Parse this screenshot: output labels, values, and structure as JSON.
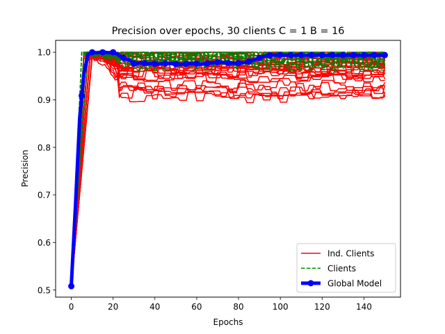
{
  "chart_data": {
    "type": "line",
    "title": "Precision over epochs, 30 clients C = 1 B = 16",
    "xlabel": "Epochs",
    "ylabel": "Precision",
    "xlim": [
      -7.5,
      157.5
    ],
    "ylim": [
      0.485,
      1.025
    ],
    "xticks": [
      0,
      20,
      40,
      60,
      80,
      100,
      120,
      140
    ],
    "yticks": [
      0.5,
      0.6,
      0.7,
      0.8,
      0.9,
      1.0
    ],
    "ytick_labels": [
      "0.5",
      "0.6",
      "0.7",
      "0.8",
      "0.9",
      "1.0"
    ],
    "grid": false,
    "legend_position": "lower-right",
    "legend": [
      {
        "label": "Ind. Clients",
        "color": "#ff0000",
        "style": "solid"
      },
      {
        "label": "Clients",
        "color": "#008000",
        "style": "dashed"
      },
      {
        "label": "Global Model",
        "color": "#0000ff",
        "style": "thick-marker"
      }
    ],
    "global_model": {
      "name": "Global Model",
      "color": "#0000ff",
      "x": [
        0,
        2,
        4,
        6,
        8,
        10,
        12,
        14,
        16,
        18,
        20,
        22,
        24,
        26,
        28,
        30,
        32,
        34,
        36,
        38,
        40,
        42,
        44,
        46,
        48,
        50,
        52,
        54,
        56,
        58,
        60,
        62,
        64,
        66,
        68,
        70,
        72,
        74,
        76,
        78,
        80,
        82,
        84,
        86,
        88,
        90,
        92,
        94,
        96,
        98,
        100,
        102,
        104,
        106,
        108,
        110,
        112,
        114,
        116,
        118,
        120,
        122,
        124,
        126,
        128,
        130,
        132,
        134,
        136,
        138,
        140,
        142,
        144,
        146,
        148,
        150
      ],
      "y": [
        0.508,
        0.68,
        0.862,
        0.955,
        0.995,
        1.0,
        0.999,
        1.0,
        1.0,
        0.999,
        1.0,
        0.996,
        0.99,
        0.986,
        0.983,
        0.976,
        0.977,
        0.978,
        0.976,
        0.976,
        0.976,
        0.975,
        0.976,
        0.977,
        0.976,
        0.975,
        0.975,
        0.975,
        0.976,
        0.976,
        0.976,
        0.975,
        0.976,
        0.977,
        0.978,
        0.979,
        0.979,
        0.978,
        0.977,
        0.977,
        0.977,
        0.978,
        0.979,
        0.982,
        0.985,
        0.988,
        0.991,
        0.993,
        0.994,
        0.994,
        0.994,
        0.994,
        0.994,
        0.994,
        0.994,
        0.994,
        0.994,
        0.994,
        0.994,
        0.994,
        0.994,
        0.994,
        0.994,
        0.994,
        0.994,
        0.994,
        0.994,
        0.994,
        0.994,
        0.994,
        0.994,
        0.994,
        0.994,
        0.994,
        0.994,
        0.994
      ],
      "marker_x": [
        0,
        5,
        10,
        15,
        20,
        25,
        30,
        35,
        40,
        45,
        50,
        55,
        60,
        65,
        70,
        75,
        80,
        85,
        90,
        95,
        100,
        105,
        110,
        115,
        120,
        125,
        130,
        135,
        140,
        145,
        150
      ]
    },
    "ind_clients": {
      "name": "Ind. Clients",
      "color": "#ff0000",
      "count": 30,
      "plateau_values": [
        0.999,
        0.998,
        0.995,
        0.993,
        0.99,
        0.988,
        0.986,
        0.984,
        0.982,
        0.98,
        0.978,
        0.976,
        0.974,
        0.972,
        0.97,
        0.968,
        0.966,
        0.963,
        0.96,
        0.958,
        0.955,
        0.952,
        0.948,
        0.946,
        0.93,
        0.925,
        0.92,
        0.917,
        0.912,
        0.906
      ]
    },
    "clients": {
      "name": "Clients",
      "color": "#008000",
      "count": 12,
      "plateau_values": [
        1.0,
        0.998,
        0.996,
        0.994,
        0.992,
        0.99,
        0.988,
        0.986,
        0.984,
        0.982,
        0.98,
        0.978
      ]
    }
  }
}
